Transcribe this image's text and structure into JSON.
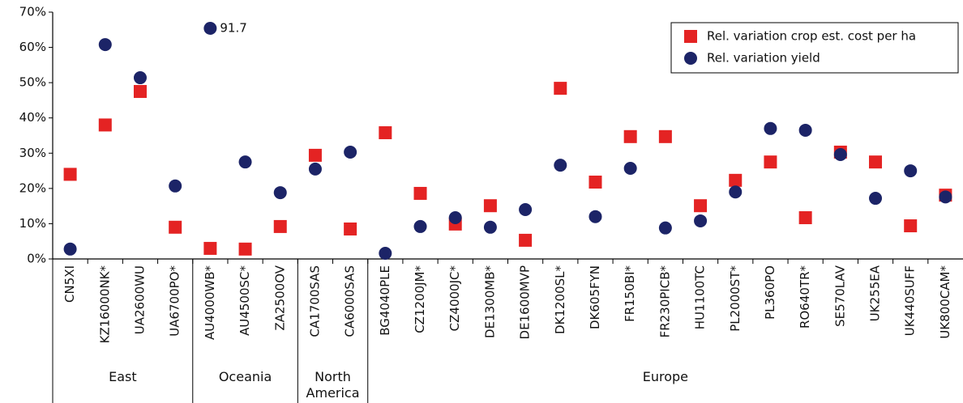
{
  "chart_data": {
    "type": "scatter",
    "groups": [
      {
        "label": "East",
        "categories": [
          "CN5XI",
          "KZ16000NK*",
          "UA2600WU",
          "UA6700PO*"
        ]
      },
      {
        "label": "Oceania",
        "categories": [
          "AU4000WB*",
          "AU4500SC*",
          "ZA2500OV"
        ]
      },
      {
        "label": "North America",
        "categories": [
          "CA1700SAS",
          "CA6000SAS"
        ]
      },
      {
        "label": "Europe",
        "categories": [
          "BG4040PLE",
          "CZ1200JM*",
          "CZ4000JC*",
          "DE1300MB*",
          "DE1600MVP",
          "DK1200SL*",
          "DK605FYN",
          "FR150BI*",
          "FR230PICB*",
          "HU1100TC",
          "PL2000ST*",
          "PL360PO",
          "RO640TR*",
          "SE570LAV",
          "UK255EA",
          "UK440SUFF",
          "UK800CAM*"
        ]
      }
    ],
    "series": [
      {
        "name": "Rel. variation crop est. cost per ha",
        "color": "#e42323",
        "marker": "square",
        "values": [
          24,
          38,
          47.5,
          9,
          3,
          2.8,
          9.2,
          29.4,
          8.5,
          35.8,
          18.6,
          9.9,
          15.1,
          5.3,
          48.4,
          21.8,
          34.7,
          34.7,
          15.1,
          22.3,
          27.5,
          11.7,
          30.3,
          27.5,
          9.4,
          18.1
        ]
      },
      {
        "name": "Rel. variation yield",
        "color": "#1c2467",
        "marker": "circle",
        "values": [
          2.8,
          60.8,
          51.4,
          20.7,
          91.7,
          27.5,
          18.8,
          25.5,
          30.3,
          1.6,
          9.2,
          11.7,
          9,
          14,
          26.6,
          12,
          25.7,
          8.8,
          10.8,
          19,
          37,
          36.5,
          29.6,
          17.2,
          25,
          17.6
        ],
        "value_labels": [
          null,
          null,
          null,
          null,
          "91.7",
          null,
          null,
          null,
          null,
          null,
          null,
          null,
          null,
          null,
          null,
          null,
          null,
          null,
          null,
          null,
          null,
          null,
          null,
          null,
          null,
          null
        ]
      }
    ],
    "ylim": [
      0,
      70
    ],
    "yticks": [
      {
        "value": 0,
        "label": "0%"
      },
      {
        "value": 10,
        "label": "10%"
      },
      {
        "value": 20,
        "label": "20%"
      },
      {
        "value": 30,
        "label": "30%"
      },
      {
        "value": 40,
        "label": "40%"
      },
      {
        "value": 50,
        "label": "50%"
      },
      {
        "value": 60,
        "label": "60%"
      },
      {
        "value": 70,
        "label": "70%"
      }
    ],
    "legend": "top-right"
  }
}
